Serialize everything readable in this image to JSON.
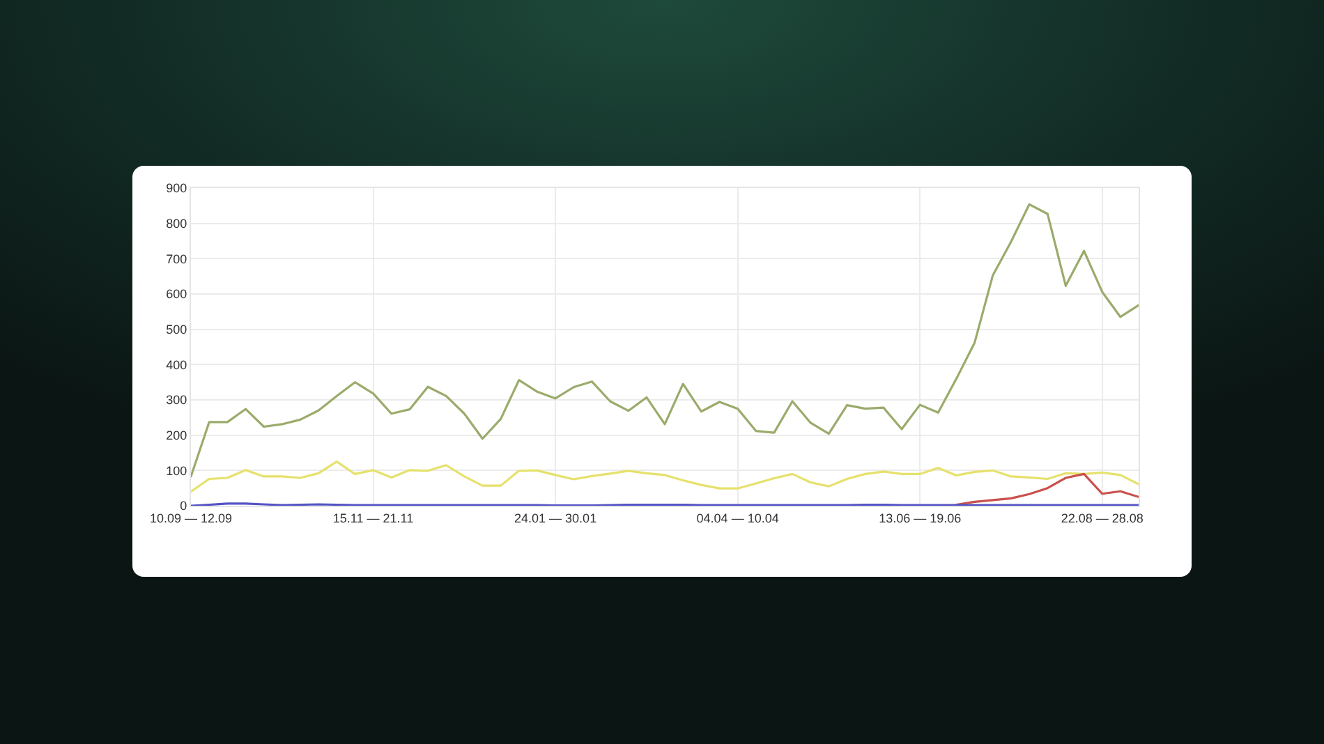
{
  "chart_data": {
    "type": "line",
    "categories": [
      "10.09 — 12.09",
      null,
      null,
      null,
      null,
      null,
      null,
      null,
      null,
      null,
      "15.11 — 21.11",
      null,
      null,
      null,
      null,
      null,
      null,
      null,
      null,
      null,
      "24.01 — 30.01",
      null,
      null,
      null,
      null,
      null,
      null,
      null,
      null,
      null,
      "04.04 — 10.04",
      null,
      null,
      null,
      null,
      null,
      null,
      null,
      null,
      null,
      "13.06 — 19.06",
      null,
      null,
      null,
      null,
      null,
      null,
      null,
      null,
      null,
      "22.08 — 28.08",
      null,
      null
    ],
    "series": [
      {
        "color": "#9aab6b",
        "values": [
          83,
          237,
          237,
          274,
          224,
          231,
          244,
          270,
          311,
          350,
          318,
          261,
          273,
          337,
          311,
          261,
          190,
          246,
          356,
          323,
          304,
          336,
          352,
          296,
          269,
          307,
          231,
          345,
          267,
          294,
          275,
          212,
          207,
          296,
          235,
          204,
          285,
          275,
          278,
          217,
          286,
          264,
          360,
          462,
          653,
          748,
          854,
          827,
          623,
          722,
          606,
          535,
          568
        ]
      },
      {
        "color": "#e6e16c",
        "values": [
          40,
          76,
          79,
          101,
          83,
          83,
          79,
          92,
          125,
          90,
          101,
          80,
          101,
          99,
          115,
          83,
          57,
          57,
          99,
          100,
          87,
          75,
          84,
          91,
          99,
          92,
          87,
          72,
          59,
          49,
          49,
          63,
          78,
          90,
          66,
          55,
          76,
          90,
          97,
          90,
          90,
          107,
          86,
          96,
          100,
          83,
          80,
          76,
          92,
          90,
          94,
          87,
          61
        ]
      },
      {
        "color": "#c9504c",
        "values": [
          null,
          null,
          null,
          null,
          null,
          null,
          null,
          null,
          null,
          null,
          null,
          null,
          null,
          null,
          null,
          null,
          null,
          null,
          null,
          null,
          null,
          null,
          null,
          null,
          null,
          null,
          null,
          null,
          null,
          null,
          null,
          null,
          null,
          null,
          null,
          null,
          null,
          null,
          null,
          null,
          null,
          null,
          3,
          11,
          16,
          21,
          33,
          50,
          79,
          90,
          34,
          41,
          25
        ]
      },
      {
        "color": "#5353c6",
        "values": [
          0,
          3,
          6,
          6,
          4,
          2,
          3,
          4,
          3,
          2,
          2,
          2,
          2,
          2,
          2,
          2,
          2,
          2,
          2,
          2,
          1,
          1,
          1,
          2,
          3,
          3,
          3,
          3,
          2,
          2,
          2,
          2,
          2,
          2,
          2,
          2,
          2,
          3,
          3,
          2,
          2,
          2,
          2,
          2,
          2,
          2,
          2,
          2,
          2,
          2,
          2,
          2,
          2
        ]
      }
    ],
    "ylim": [
      0,
      900
    ],
    "yticks": [
      0,
      100,
      200,
      300,
      400,
      500,
      600,
      700,
      800,
      900
    ],
    "grid": true
  }
}
